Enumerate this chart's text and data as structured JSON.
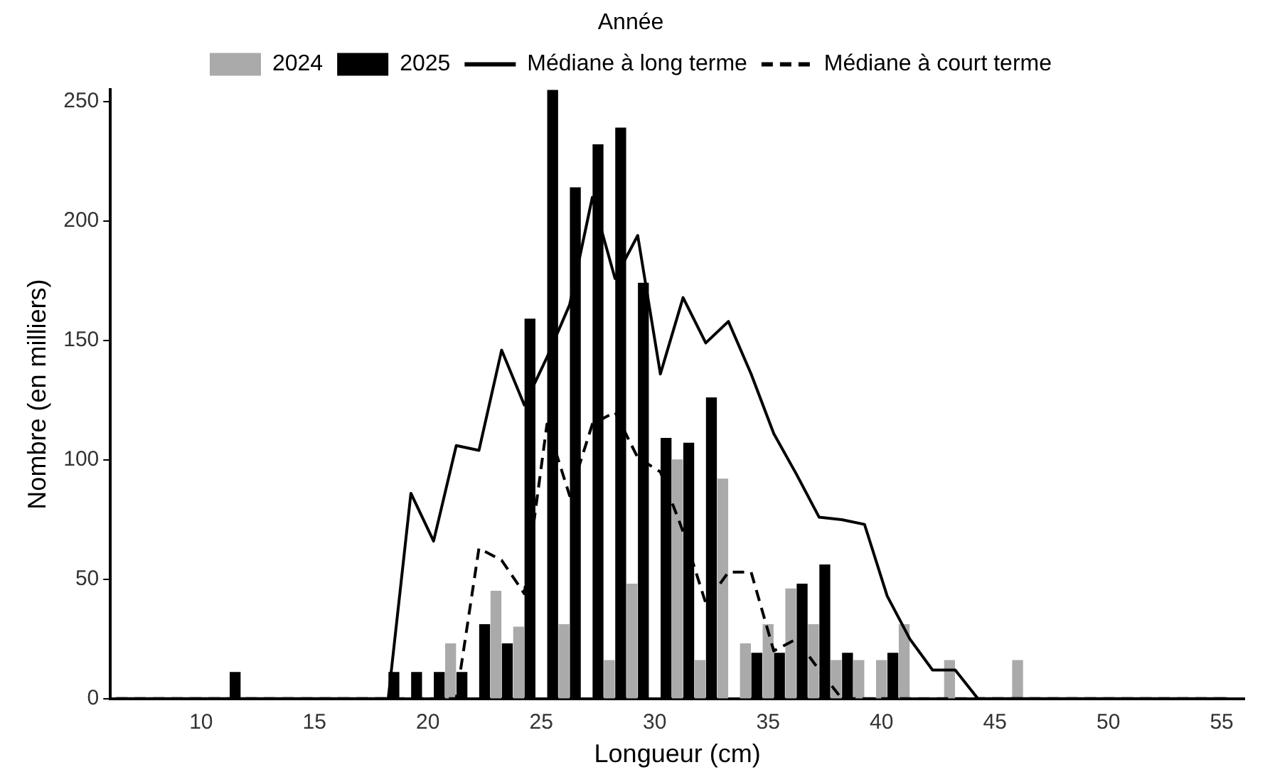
{
  "chart_data": {
    "type": "bar",
    "xlabel": "Longueur (cm)",
    "ylabel": "Nombre (en milliers)",
    "legend_title": "Année",
    "legend": "top",
    "xlim": [
      6,
      56
    ],
    "xticks": [
      10,
      15,
      20,
      25,
      30,
      35,
      40,
      45,
      50,
      55
    ],
    "ylim": [
      0,
      255
    ],
    "yticks": [
      0,
      50,
      100,
      150,
      200,
      250
    ],
    "series": [
      {
        "name": "2024",
        "color": "#aaaaaa",
        "x": [
          21,
          23,
          24,
          26,
          28,
          29,
          31,
          32,
          33,
          34,
          35,
          36,
          37,
          38,
          39,
          40,
          41,
          43,
          46
        ],
        "values": [
          23,
          45,
          30,
          31,
          16,
          48,
          100,
          16,
          92,
          23,
          31,
          46,
          31,
          16,
          16,
          16,
          31,
          16,
          16
        ]
      },
      {
        "name": "2025",
        "color": "#000000",
        "x": [
          11.5,
          18.5,
          19.5,
          20.5,
          21.5,
          22.5,
          23.5,
          24.5,
          25.5,
          26.5,
          27.5,
          28.5,
          29.5,
          30.5,
          31.5,
          32.5,
          34.5,
          35.5,
          36.5,
          37.5,
          38.5,
          40.5
        ],
        "values": [
          11,
          11,
          11,
          11,
          11,
          31,
          23,
          159,
          255,
          214,
          232,
          239,
          174,
          109,
          107,
          126,
          19,
          19,
          48,
          56,
          19,
          19
        ]
      },
      {
        "name": "Médiane à long terme",
        "type": "line",
        "line_style": "solid",
        "color": "#000000",
        "x": [
          6.25,
          7.25,
          8.25,
          9.25,
          10.25,
          11.25,
          12.25,
          13.25,
          14.25,
          15.25,
          16.25,
          17.25,
          18.25,
          19.25,
          20.25,
          21.25,
          22.25,
          23.25,
          24.25,
          25.25,
          26.25,
          27.25,
          28.25,
          29.25,
          30.25,
          31.25,
          32.25,
          33.25,
          34.25,
          35.25,
          36.25,
          37.25,
          38.25,
          39.25,
          40.25,
          41.25,
          42.25,
          43.25,
          44.25,
          45.25,
          46.25,
          47.25,
          48.25,
          49.25,
          50.25,
          51.25,
          52.25,
          53.25,
          54.25,
          55.25
        ],
        "values": [
          0,
          0,
          0,
          0,
          0,
          0,
          0,
          0,
          0,
          0,
          0,
          0,
          0,
          86,
          66,
          106,
          104,
          146,
          123,
          143,
          165,
          210,
          176,
          194,
          136,
          168,
          149,
          158,
          136,
          111,
          94,
          76,
          75,
          73,
          43,
          25,
          12,
          12,
          0,
          0,
          0,
          0,
          0,
          0,
          0,
          0,
          0,
          0,
          0,
          0
        ]
      },
      {
        "name": "Médiane à court terme",
        "type": "line",
        "line_style": "dashed",
        "color": "#000000",
        "x": [
          6.25,
          7.25,
          8.25,
          9.25,
          10.25,
          11.25,
          12.25,
          13.25,
          14.25,
          15.25,
          16.25,
          17.25,
          18.25,
          19.25,
          20.25,
          21.25,
          22.25,
          23.25,
          24.25,
          25.25,
          26.25,
          27.25,
          28.25,
          29.25,
          30.25,
          31.25,
          32.25,
          33.25,
          34.25,
          35.25,
          36.25,
          37.25,
          38.25,
          39.25,
          40.25,
          41.25,
          42.25,
          43.25,
          44.25,
          45.25,
          46.25,
          47.25,
          48.25,
          49.25,
          50.25,
          51.25,
          52.25,
          53.25,
          54.25,
          55.25
        ],
        "values": [
          0,
          0,
          0,
          0,
          0,
          0,
          0,
          0,
          0,
          0,
          0,
          0,
          0,
          0,
          0,
          0,
          63,
          58,
          44,
          115,
          85,
          115,
          120,
          101,
          95,
          70,
          40,
          53,
          53,
          20,
          25,
          12,
          0,
          0,
          0,
          0,
          0,
          0,
          0,
          0,
          0,
          0,
          0,
          0,
          0,
          0,
          0,
          0,
          0,
          0
        ]
      }
    ]
  }
}
